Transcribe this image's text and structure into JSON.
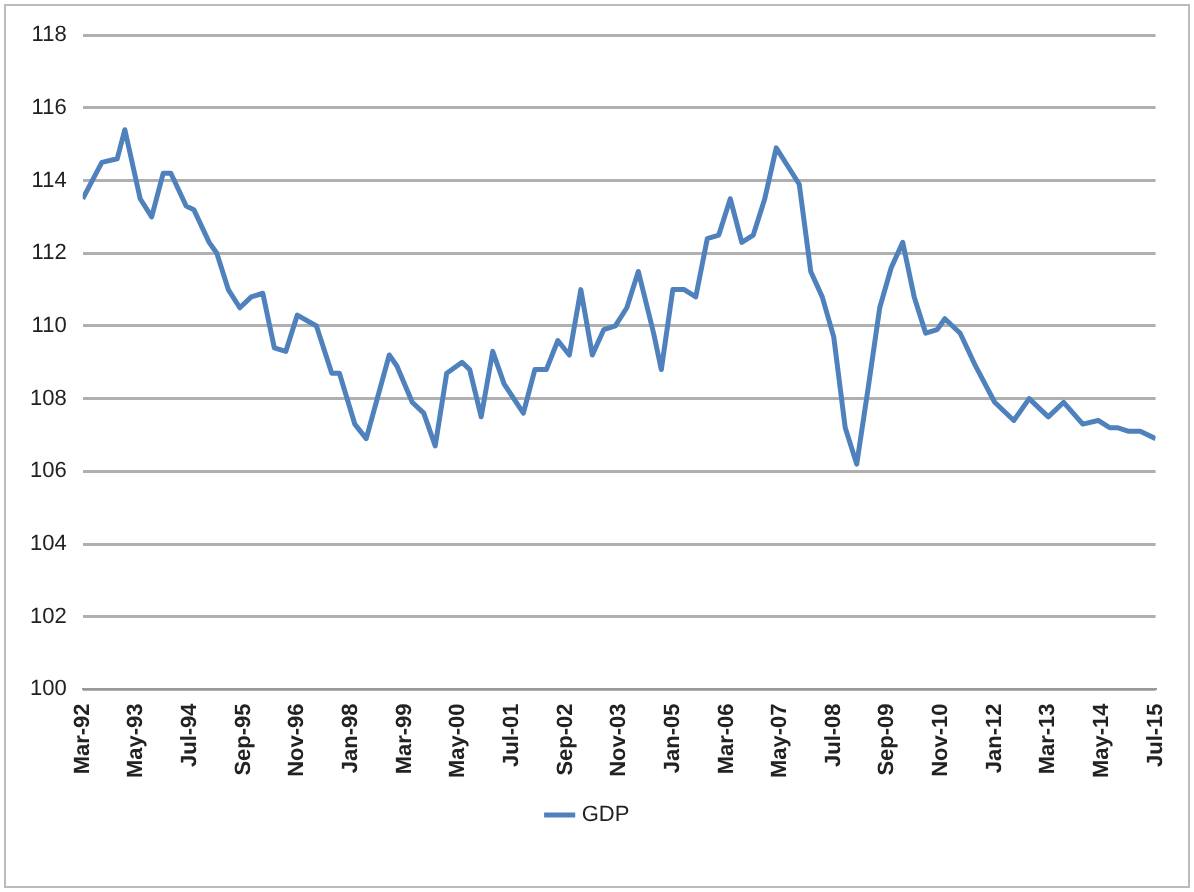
{
  "chart_data": {
    "type": "line",
    "x": [
      "1992-03",
      "1992-08",
      "1992-12",
      "1993-02",
      "1993-06",
      "1993-09",
      "1993-12",
      "1994-02",
      "1994-06",
      "1994-08",
      "1994-12",
      "1995-02",
      "1995-05",
      "1995-08",
      "1995-11",
      "1996-02",
      "1996-05",
      "1996-08",
      "1996-11",
      "1997-04",
      "1997-08",
      "1997-10",
      "1998-02",
      "1998-05",
      "1998-11",
      "1999-01",
      "1999-05",
      "1999-08",
      "1999-11",
      "2000-02",
      "2000-06",
      "2000-08",
      "2000-11",
      "2001-02",
      "2001-05",
      "2001-10",
      "2002-01",
      "2002-04",
      "2002-07",
      "2002-10",
      "2003-01",
      "2003-04",
      "2003-07",
      "2003-10",
      "2004-01",
      "2004-04",
      "2004-08",
      "2004-10",
      "2005-01",
      "2005-04",
      "2005-07",
      "2005-10",
      "2006-01",
      "2006-04",
      "2006-07",
      "2006-10",
      "2007-01",
      "2007-04",
      "2007-10",
      "2008-01",
      "2008-04",
      "2008-07",
      "2008-10",
      "2009-01",
      "2009-04",
      "2009-07",
      "2009-10",
      "2010-01",
      "2010-04",
      "2010-07",
      "2010-10",
      "2010-12",
      "2011-04",
      "2011-08",
      "2012-01",
      "2012-06",
      "2012-10",
      "2013-03",
      "2013-07",
      "2013-12",
      "2014-04",
      "2014-07",
      "2014-09",
      "2014-12",
      "2015-03",
      "2015-07"
    ],
    "series": [
      {
        "name": "GDP",
        "color": "#4f81bd",
        "values": [
          113.5,
          114.5,
          114.6,
          115.4,
          113.5,
          113.0,
          114.2,
          114.2,
          113.3,
          113.2,
          112.3,
          112.0,
          111.0,
          110.5,
          110.8,
          110.9,
          109.4,
          109.3,
          110.3,
          110.0,
          108.7,
          108.7,
          107.3,
          106.9,
          109.2,
          108.9,
          107.9,
          107.6,
          106.7,
          108.7,
          109.0,
          108.8,
          107.5,
          109.3,
          108.4,
          107.6,
          108.8,
          108.8,
          109.6,
          109.2,
          111.0,
          109.2,
          109.9,
          110.0,
          110.5,
          111.5,
          109.8,
          108.8,
          111.0,
          111.0,
          110.8,
          112.4,
          112.5,
          113.5,
          112.3,
          112.5,
          113.5,
          114.9,
          113.9,
          111.5,
          110.8,
          109.7,
          107.2,
          106.2,
          108.3,
          110.5,
          111.6,
          112.3,
          110.8,
          109.8,
          109.9,
          110.2,
          109.8,
          108.9,
          107.9,
          107.4,
          108.0,
          107.5,
          107.9,
          107.3,
          107.4,
          107.2,
          107.2,
          107.1,
          107.1,
          106.9
        ]
      }
    ],
    "xlim": [
      "1992-03",
      "2015-07"
    ],
    "xticks": [
      {
        "value": "1992-03",
        "label": "Mar-92"
      },
      {
        "value": "1993-05",
        "label": "May-93"
      },
      {
        "value": "1994-07",
        "label": "Jul-94"
      },
      {
        "value": "1995-09",
        "label": "Sep-95"
      },
      {
        "value": "1996-11",
        "label": "Nov-96"
      },
      {
        "value": "1998-01",
        "label": "Jan-98"
      },
      {
        "value": "1999-03",
        "label": "Mar-99"
      },
      {
        "value": "2000-05",
        "label": "May-00"
      },
      {
        "value": "2001-07",
        "label": "Jul-01"
      },
      {
        "value": "2002-09",
        "label": "Sep-02"
      },
      {
        "value": "2003-11",
        "label": "Nov-03"
      },
      {
        "value": "2005-01",
        "label": "Jan-05"
      },
      {
        "value": "2006-03",
        "label": "Mar-06"
      },
      {
        "value": "2007-05",
        "label": "May-07"
      },
      {
        "value": "2008-07",
        "label": "Jul-08"
      },
      {
        "value": "2009-09",
        "label": "Sep-09"
      },
      {
        "value": "2010-11",
        "label": "Nov-10"
      },
      {
        "value": "2012-01",
        "label": "Jan-12"
      },
      {
        "value": "2013-03",
        "label": "Mar-13"
      },
      {
        "value": "2014-05",
        "label": "May-14"
      },
      {
        "value": "2015-07",
        "label": "Jul-15"
      }
    ],
    "ylim": [
      100,
      118
    ],
    "yticks": [
      100,
      102,
      104,
      106,
      108,
      110,
      112,
      114,
      116,
      118
    ],
    "grid": "y",
    "legend": "bottom",
    "marker": "none",
    "line_style": "solid"
  }
}
